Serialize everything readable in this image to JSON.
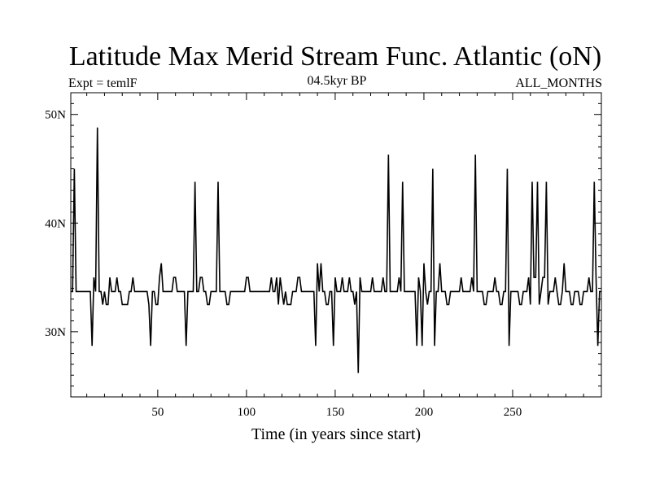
{
  "chart_data": {
    "type": "line",
    "title": "Latitude Max Merid Stream Func. Atlantic (oN)",
    "subtitle_left": "Expt = temlF",
    "subtitle_center": "04.5kyr BP",
    "subtitle_right": "ALL_MONTHS",
    "xlabel": "Time (in years since start)",
    "ylabel": "",
    "xlim": [
      1,
      300
    ],
    "ylim": [
      24,
      52
    ],
    "xticks": [
      50,
      100,
      150,
      200,
      250
    ],
    "xtick_labels": [
      "50",
      "100",
      "150",
      "200",
      "250"
    ],
    "yticks": [
      30,
      40,
      50
    ],
    "ytick_labels": [
      "30N",
      "40N",
      "50N"
    ],
    "grid": false,
    "line_color": "#000000",
    "series": [
      {
        "name": "Latitude Max Merid Stream Func",
        "values": [
          33.7,
          33.7,
          45.0,
          33.7,
          33.7,
          33.7,
          33.7,
          33.7,
          33.7,
          33.7,
          33.7,
          33.7,
          28.7,
          35.0,
          33.7,
          48.8,
          33.7,
          33.7,
          32.5,
          33.7,
          32.5,
          32.5,
          35.0,
          33.7,
          33.7,
          33.7,
          35.0,
          33.7,
          33.7,
          32.5,
          32.5,
          32.5,
          32.5,
          33.7,
          33.7,
          35.0,
          33.7,
          33.7,
          33.7,
          33.7,
          33.7,
          33.7,
          33.7,
          33.7,
          32.5,
          28.7,
          33.7,
          33.7,
          32.5,
          32.5,
          35.0,
          36.3,
          33.7,
          33.7,
          33.7,
          33.7,
          33.7,
          33.7,
          35.0,
          35.0,
          33.7,
          33.7,
          33.7,
          33.7,
          33.7,
          28.7,
          33.7,
          33.7,
          33.7,
          33.7,
          43.8,
          33.7,
          33.7,
          35.0,
          35.0,
          33.7,
          33.7,
          32.5,
          32.5,
          33.7,
          33.7,
          33.7,
          33.7,
          43.8,
          33.7,
          33.7,
          33.7,
          33.7,
          32.5,
          32.5,
          33.7,
          33.7,
          33.7,
          33.7,
          33.7,
          33.7,
          33.7,
          33.7,
          33.7,
          35.0,
          35.0,
          33.7,
          33.7,
          33.7,
          33.7,
          33.7,
          33.7,
          33.7,
          33.7,
          33.7,
          33.7,
          33.7,
          33.7,
          35.0,
          33.7,
          33.7,
          35.0,
          32.5,
          35.0,
          33.7,
          32.5,
          33.7,
          32.5,
          32.5,
          32.5,
          33.7,
          33.7,
          33.7,
          35.0,
          35.0,
          33.7,
          33.7,
          33.7,
          33.7,
          33.7,
          33.7,
          33.7,
          33.7,
          28.7,
          36.3,
          33.7,
          36.3,
          33.7,
          33.7,
          32.5,
          32.5,
          33.7,
          33.7,
          28.7,
          35.0,
          33.7,
          33.7,
          33.7,
          35.0,
          33.7,
          33.7,
          33.7,
          35.0,
          33.7,
          33.7,
          32.5,
          33.7,
          26.2,
          35.0,
          33.7,
          33.7,
          33.7,
          33.7,
          33.7,
          33.7,
          35.0,
          33.7,
          33.7,
          33.7,
          33.7,
          33.7,
          35.0,
          33.7,
          33.7,
          46.3,
          33.7,
          33.7,
          33.7,
          33.7,
          33.7,
          35.0,
          33.7,
          43.8,
          33.7,
          33.7,
          33.7,
          33.7,
          33.7,
          33.7,
          33.7,
          28.7,
          35.0,
          33.7,
          28.7,
          36.3,
          33.7,
          32.5,
          33.7,
          33.7,
          45.0,
          28.7,
          33.7,
          33.7,
          36.3,
          33.7,
          33.7,
          33.7,
          32.5,
          32.5,
          33.7,
          33.7,
          33.7,
          33.7,
          33.7,
          33.7,
          35.0,
          33.7,
          33.7,
          33.7,
          33.7,
          33.7,
          35.0,
          33.7,
          46.3,
          33.7,
          33.7,
          33.7,
          33.7,
          32.5,
          32.5,
          33.7,
          33.7,
          33.7,
          33.7,
          35.0,
          33.7,
          33.7,
          32.5,
          32.5,
          33.7,
          33.7,
          45.0,
          28.7,
          33.7,
          33.7,
          33.7,
          33.7,
          33.7,
          32.5,
          32.5,
          33.7,
          33.7,
          33.7,
          35.0,
          32.5,
          43.8,
          35.0,
          35.0,
          43.8,
          32.5,
          33.7,
          35.0,
          35.0,
          43.8,
          32.5,
          33.7,
          33.7,
          33.7,
          35.0,
          33.7,
          32.5,
          32.5,
          33.7,
          36.3,
          33.7,
          33.7,
          33.7,
          32.5,
          32.5,
          33.7,
          33.7,
          33.7,
          32.5,
          32.5,
          33.7,
          33.7,
          33.7,
          35.0,
          33.7,
          33.7,
          43.8,
          35.0,
          28.7,
          33.7,
          33.7
        ]
      }
    ]
  }
}
